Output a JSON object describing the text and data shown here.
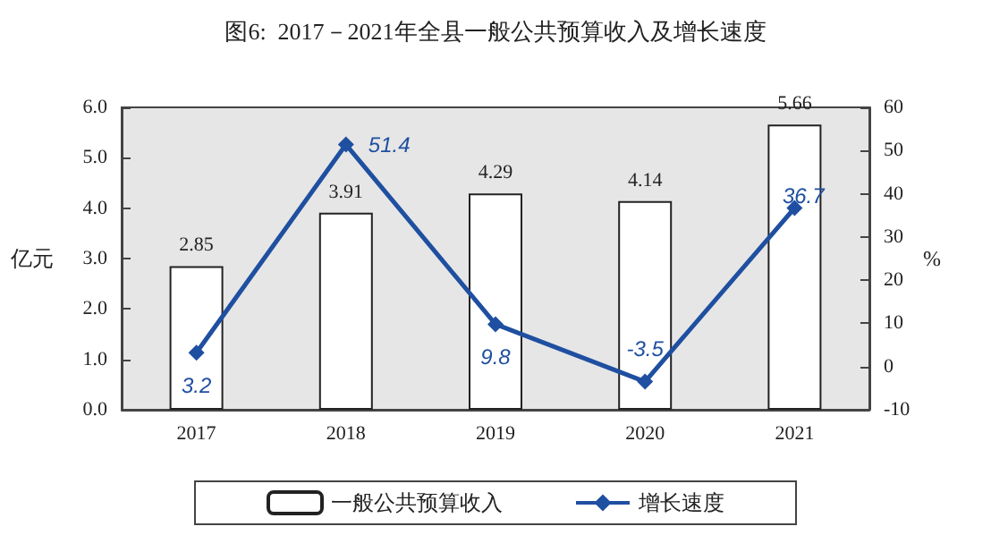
{
  "chart_data": {
    "type": "bar",
    "title": "图6:  2017－2021年全县一般公共预算收入及增长速度",
    "ylabel": "亿元",
    "y2label": "%",
    "categories": [
      "2017",
      "2018",
      "2019",
      "2020",
      "2021"
    ],
    "series": [
      {
        "name": "一般公共预算收入",
        "color": "#ffffff",
        "values": [
          2.85,
          3.91,
          4.29,
          4.14,
          5.66
        ]
      },
      {
        "name": "增长速度",
        "type": "line",
        "axis": "y2",
        "color": "#1f4fa0",
        "values": [
          3.2,
          51.4,
          9.8,
          -3.5,
          36.7
        ]
      }
    ],
    "ylim": [
      0,
      6
    ],
    "yticks": [
      {
        "value": 0,
        "label": "0.0"
      },
      {
        "value": 1,
        "label": "1.0"
      },
      {
        "value": 2,
        "label": "2.0"
      },
      {
        "value": 3,
        "label": "3.0"
      },
      {
        "value": 4,
        "label": "4.0"
      },
      {
        "value": 5,
        "label": "5.0"
      },
      {
        "value": 6,
        "label": "6.0"
      }
    ],
    "y2lim": [
      -10,
      60
    ],
    "y2ticks": [
      -10,
      0,
      10,
      20,
      30,
      40,
      50,
      60
    ],
    "data_labels": true,
    "legend": "bottom",
    "grid": false,
    "marker": "diamond"
  }
}
